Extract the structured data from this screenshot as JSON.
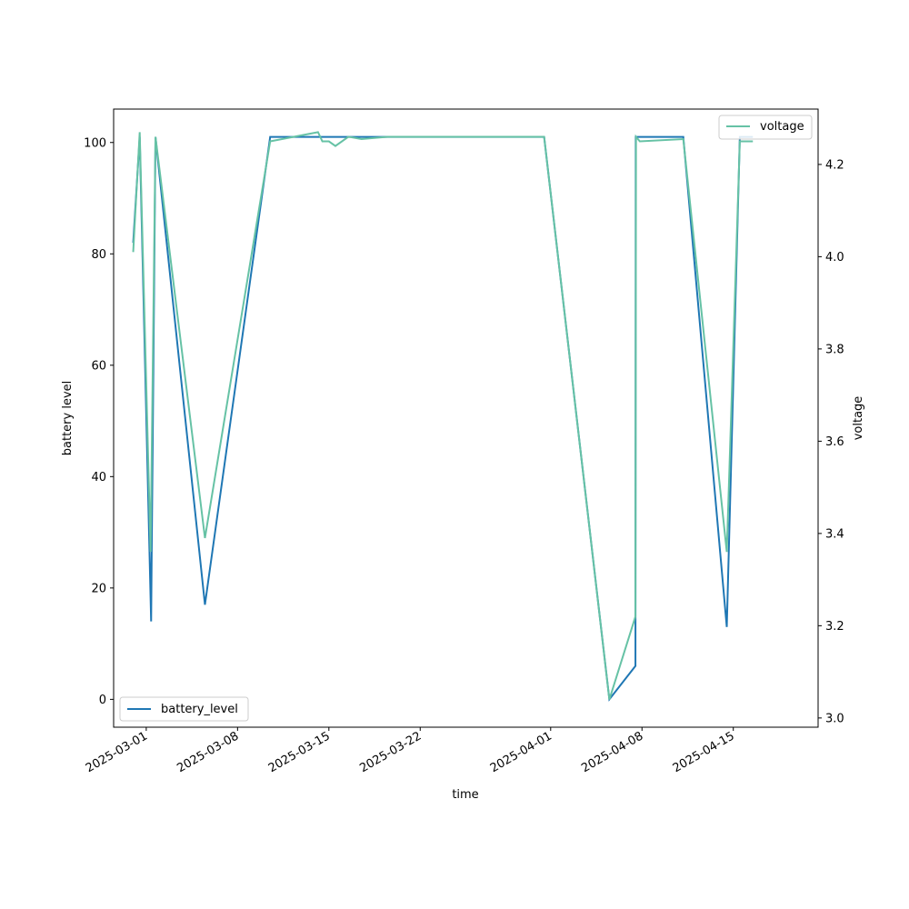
{
  "chart_data": {
    "type": "line",
    "xlabel": "time",
    "ylabel_left": "battery level",
    "ylabel_right": "voltage",
    "x_ticks": [
      "2025-03-01",
      "2025-03-08",
      "2025-03-15",
      "2025-03-22",
      "2025-04-01",
      "2025-04-08",
      "2025-04-15"
    ],
    "y_left_ticks": [
      "0",
      "20",
      "40",
      "60",
      "80",
      "100"
    ],
    "y_right_ticks": [
      "3.0",
      "3.2",
      "3.4",
      "3.6",
      "3.8",
      "4.0",
      "4.2"
    ],
    "y_left_lim": [
      -5,
      106
    ],
    "y_right_lim": [
      2.98,
      4.32
    ],
    "x_lim": [
      "2025-02-26T12:00",
      "2025-04-21T12:00"
    ],
    "grid": false,
    "legend_left": {
      "label": "battery_level",
      "placement": "lower-left"
    },
    "legend_right": {
      "label": "voltage",
      "placement": "upper-right"
    },
    "series": [
      {
        "name": "battery_level",
        "axis": "left",
        "color": "#1f77b4",
        "points": [
          [
            "2025-02-28T00:00",
            82
          ],
          [
            "2025-02-28T12:00",
            101
          ],
          [
            "2025-03-01T09:00",
            14
          ],
          [
            "2025-03-01T10:00",
            26
          ],
          [
            "2025-03-01T17:00",
            101
          ],
          [
            "2025-03-05T12:00",
            17
          ],
          [
            "2025-03-10T12:00",
            101
          ],
          [
            "2025-03-31T12:00",
            101
          ],
          [
            "2025-04-05T12:00",
            0
          ],
          [
            "2025-04-07T12:00",
            6
          ],
          [
            "2025-04-07T12:30",
            101
          ],
          [
            "2025-04-11T04:00",
            101
          ],
          [
            "2025-04-14T12:00",
            13
          ],
          [
            "2025-04-15T12:00",
            101
          ],
          [
            "2025-04-16T12:00",
            101
          ]
        ]
      },
      {
        "name": "voltage",
        "axis": "right",
        "color": "#66c2a5",
        "points": [
          [
            "2025-02-28T00:00",
            4.01
          ],
          [
            "2025-02-28T12:00",
            4.27
          ],
          [
            "2025-03-01T08:00",
            3.36
          ],
          [
            "2025-03-01T17:00",
            4.26
          ],
          [
            "2025-03-05T12:00",
            3.39
          ],
          [
            "2025-03-10T12:00",
            4.25
          ],
          [
            "2025-03-14T04:00",
            4.27
          ],
          [
            "2025-03-14T12:00",
            4.25
          ],
          [
            "2025-03-15T00:00",
            4.25
          ],
          [
            "2025-03-15T12:00",
            4.24
          ],
          [
            "2025-03-16T12:00",
            4.26
          ],
          [
            "2025-03-17T12:00",
            4.255
          ],
          [
            "2025-03-19T12:00",
            4.26
          ],
          [
            "2025-03-31T12:00",
            4.26
          ],
          [
            "2025-04-05T12:00",
            3.04
          ],
          [
            "2025-04-07T12:00",
            3.22
          ],
          [
            "2025-04-07T13:00",
            4.26
          ],
          [
            "2025-04-07T20:00",
            4.25
          ],
          [
            "2025-04-11T04:00",
            4.255
          ],
          [
            "2025-04-14T12:00",
            3.36
          ],
          [
            "2025-04-15T12:00",
            4.25
          ],
          [
            "2025-04-16T12:00",
            4.25
          ]
        ]
      }
    ]
  }
}
